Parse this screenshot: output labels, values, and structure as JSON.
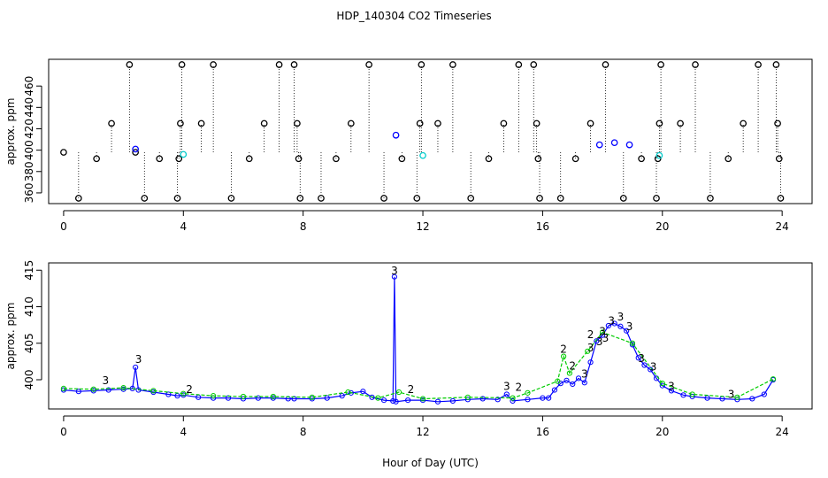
{
  "title": "HDP_140304  CO2 Timeseries",
  "colors": {
    "black": "#000000",
    "blue": "#0000ff",
    "green": "#00cc00",
    "cyan": "#00cccc"
  },
  "chart_data": [
    {
      "type": "scatter",
      "xlabel": "",
      "ylabel": "approx. ppm",
      "xlim": [
        -0.5,
        25
      ],
      "ylim": [
        350,
        485
      ],
      "x_ticks": [
        0,
        4,
        8,
        12,
        16,
        20,
        24
      ],
      "x_tick_labels": [
        "0",
        "4",
        "8",
        "12",
        "16",
        "20",
        "24"
      ],
      "y_ticks": [
        360,
        380,
        400,
        420,
        440,
        460
      ],
      "y_tick_labels": [
        "360",
        "380",
        "400",
        "420",
        "440",
        "460"
      ],
      "grid": false,
      "series": [
        {
          "color": "#000000",
          "marker": "circle",
          "points": [
            [
              0.0,
              398
            ],
            [
              0.5,
              355
            ],
            [
              1.1,
              392
            ],
            [
              1.6,
              425
            ],
            [
              2.2,
              480
            ],
            [
              2.4,
              398
            ],
            [
              2.7,
              355
            ],
            [
              3.2,
              392
            ],
            [
              3.8,
              355
            ],
            [
              3.85,
              392
            ],
            [
              3.9,
              425
            ],
            [
              3.95,
              480
            ],
            [
              4.6,
              425
            ],
            [
              5.0,
              480
            ],
            [
              5.6,
              355
            ],
            [
              6.2,
              392
            ],
            [
              6.7,
              425
            ],
            [
              7.2,
              480
            ],
            [
              7.7,
              480
            ],
            [
              7.8,
              425
            ],
            [
              7.85,
              392
            ],
            [
              7.9,
              355
            ],
            [
              8.6,
              355
            ],
            [
              9.1,
              392
            ],
            [
              9.6,
              425
            ],
            [
              10.2,
              480
            ],
            [
              10.7,
              355
            ],
            [
              11.3,
              392
            ],
            [
              11.8,
              355
            ],
            [
              11.9,
              425
            ],
            [
              11.95,
              480
            ],
            [
              12.5,
              425
            ],
            [
              13.0,
              480
            ],
            [
              13.6,
              355
            ],
            [
              14.2,
              392
            ],
            [
              14.7,
              425
            ],
            [
              15.2,
              480
            ],
            [
              15.7,
              480
            ],
            [
              15.8,
              425
            ],
            [
              15.85,
              392
            ],
            [
              15.9,
              355
            ],
            [
              16.6,
              355
            ],
            [
              17.1,
              392
            ],
            [
              17.6,
              425
            ],
            [
              18.1,
              480
            ],
            [
              18.7,
              355
            ],
            [
              19.3,
              392
            ],
            [
              19.8,
              355
            ],
            [
              19.85,
              392
            ],
            [
              19.9,
              425
            ],
            [
              19.95,
              480
            ],
            [
              20.6,
              425
            ],
            [
              21.1,
              480
            ],
            [
              21.6,
              355
            ],
            [
              22.2,
              392
            ],
            [
              22.7,
              425
            ],
            [
              23.2,
              480
            ],
            [
              23.8,
              480
            ],
            [
              23.85,
              425
            ],
            [
              23.9,
              392
            ],
            [
              23.95,
              355
            ]
          ]
        },
        {
          "color": "#0000ff",
          "marker": "circle",
          "points": [
            [
              2.4,
              401
            ],
            [
              11.1,
              414
            ],
            [
              17.9,
              405
            ],
            [
              18.4,
              407
            ],
            [
              18.9,
              405
            ]
          ]
        },
        {
          "color": "#00cccc",
          "marker": "circle",
          "points": [
            [
              4.0,
              396
            ],
            [
              12.0,
              395
            ],
            [
              19.9,
              395
            ]
          ]
        }
      ]
    },
    {
      "type": "line",
      "xlabel": "Hour of Day (UTC)",
      "ylabel": "approx. ppm",
      "xlim": [
        -0.5,
        25
      ],
      "ylim": [
        396,
        416
      ],
      "x_ticks": [
        0,
        4,
        8,
        12,
        16,
        20,
        24
      ],
      "x_tick_labels": [
        "0",
        "4",
        "8",
        "12",
        "16",
        "20",
        "24"
      ],
      "y_ticks": [
        400,
        405,
        410,
        415
      ],
      "y_tick_labels": [
        "400",
        "405",
        "410",
        "415"
      ],
      "grid": false,
      "series": [
        {
          "color": "#0000ff",
          "points": [
            [
              0.0,
              398.6
            ],
            [
              0.5,
              398.4
            ],
            [
              1.0,
              398.5
            ],
            [
              1.5,
              398.6
            ],
            [
              2.0,
              398.7
            ],
            [
              2.3,
              398.8
            ],
            [
              2.4,
              401.7
            ],
            [
              2.5,
              398.6
            ],
            [
              3.0,
              398.3
            ],
            [
              3.5,
              398.0
            ],
            [
              3.8,
              397.8
            ],
            [
              4.0,
              397.9
            ],
            [
              4.5,
              397.6
            ],
            [
              5.0,
              397.5
            ],
            [
              5.5,
              397.5
            ],
            [
              6.0,
              397.4
            ],
            [
              6.5,
              397.5
            ],
            [
              7.0,
              397.5
            ],
            [
              7.5,
              397.4
            ],
            [
              7.7,
              397.4
            ],
            [
              8.3,
              397.4
            ],
            [
              8.8,
              397.5
            ],
            [
              9.3,
              397.8
            ],
            [
              9.6,
              398.2
            ],
            [
              10.0,
              398.4
            ],
            [
              10.3,
              397.6
            ],
            [
              10.7,
              397.2
            ],
            [
              11.0,
              397.1
            ],
            [
              11.05,
              414.1
            ],
            [
              11.1,
              397.0
            ],
            [
              11.5,
              397.2
            ],
            [
              12.0,
              397.2
            ],
            [
              12.5,
              397.0
            ],
            [
              13.0,
              397.1
            ],
            [
              13.5,
              397.3
            ],
            [
              14.0,
              397.4
            ],
            [
              14.5,
              397.3
            ],
            [
              14.8,
              398.0
            ],
            [
              15.0,
              397.1
            ],
            [
              15.5,
              397.3
            ],
            [
              16.0,
              397.5
            ],
            [
              16.2,
              397.5
            ],
            [
              16.4,
              398.6
            ],
            [
              16.6,
              399.5
            ],
            [
              16.8,
              399.9
            ],
            [
              17.0,
              399.4
            ],
            [
              17.2,
              400.2
            ],
            [
              17.4,
              399.6
            ],
            [
              17.6,
              402.4
            ],
            [
              17.8,
              405.3
            ],
            [
              18.0,
              406.1
            ],
            [
              18.2,
              407.4
            ],
            [
              18.4,
              407.7
            ],
            [
              18.6,
              407.3
            ],
            [
              18.8,
              406.7
            ],
            [
              19.0,
              404.8
            ],
            [
              19.2,
              403.0
            ],
            [
              19.4,
              402.0
            ],
            [
              19.6,
              401.4
            ],
            [
              19.8,
              400.2
            ],
            [
              20.0,
              399.2
            ],
            [
              20.3,
              398.5
            ],
            [
              20.7,
              397.9
            ],
            [
              21.0,
              397.7
            ],
            [
              21.5,
              397.5
            ],
            [
              22.0,
              397.4
            ],
            [
              22.5,
              397.3
            ],
            [
              23.0,
              397.4
            ],
            [
              23.4,
              398.0
            ],
            [
              23.7,
              400.0
            ]
          ]
        },
        {
          "color": "#00cc00",
          "points": [
            [
              0.0,
              398.8
            ],
            [
              1.0,
              398.7
            ],
            [
              2.0,
              398.9
            ],
            [
              3.0,
              398.5
            ],
            [
              4.0,
              398.1
            ],
            [
              5.0,
              397.8
            ],
            [
              6.0,
              397.7
            ],
            [
              7.0,
              397.7
            ],
            [
              8.3,
              397.6
            ],
            [
              9.5,
              398.3
            ],
            [
              10.5,
              397.5
            ],
            [
              11.2,
              398.3
            ],
            [
              12.0,
              397.4
            ],
            [
              13.5,
              397.6
            ],
            [
              15.0,
              397.5
            ],
            [
              15.5,
              398.2
            ],
            [
              16.5,
              399.8
            ],
            [
              16.7,
              403.2
            ],
            [
              16.9,
              400.9
            ],
            [
              17.5,
              403.9
            ],
            [
              18.0,
              406.5
            ],
            [
              19.0,
              405.0
            ],
            [
              20.0,
              399.5
            ],
            [
              21.0,
              398.0
            ],
            [
              22.5,
              397.6
            ],
            [
              23.7,
              400.1
            ]
          ]
        }
      ],
      "annotations": [
        {
          "text": "3",
          "x": 1.4,
          "y": 399.4,
          "color": "#0000ff"
        },
        {
          "text": "3",
          "x": 2.5,
          "y": 402.3,
          "color": "#0000ff"
        },
        {
          "text": "2",
          "x": 4.2,
          "y": 398.2,
          "color": "#00cc00"
        },
        {
          "text": "3",
          "x": 11.05,
          "y": 414.4,
          "color": "#0000ff"
        },
        {
          "text": "2",
          "x": 11.6,
          "y": 398.2,
          "color": "#00cc00"
        },
        {
          "text": "3",
          "x": 14.8,
          "y": 398.6,
          "color": "#0000ff"
        },
        {
          "text": "2",
          "x": 15.2,
          "y": 398.5,
          "color": "#00cc00"
        },
        {
          "text": "2",
          "x": 16.7,
          "y": 403.7,
          "color": "#00cc00"
        },
        {
          "text": "2",
          "x": 17.0,
          "y": 401.4,
          "color": "#00cc00"
        },
        {
          "text": "3",
          "x": 17.4,
          "y": 400.3,
          "color": "#0000ff"
        },
        {
          "text": "2",
          "x": 17.6,
          "y": 405.7,
          "color": "#00cc00"
        },
        {
          "text": "3",
          "x": 17.6,
          "y": 403.9,
          "color": "#0000ff"
        },
        {
          "text": "3",
          "x": 17.9,
          "y": 404.7,
          "color": "#0000ff"
        },
        {
          "text": "3",
          "x": 18.0,
          "y": 406.1,
          "color": "#0000ff"
        },
        {
          "text": "3",
          "x": 18.1,
          "y": 405.2,
          "color": "#0000ff"
        },
        {
          "text": "3",
          "x": 18.3,
          "y": 407.6,
          "color": "#0000ff"
        },
        {
          "text": "3",
          "x": 18.6,
          "y": 408.1,
          "color": "#0000ff"
        },
        {
          "text": "3",
          "x": 18.9,
          "y": 406.8,
          "color": "#0000ff"
        },
        {
          "text": "3",
          "x": 19.3,
          "y": 402.4,
          "color": "#0000ff"
        },
        {
          "text": "3",
          "x": 19.7,
          "y": 401.3,
          "color": "#0000ff"
        },
        {
          "text": "3",
          "x": 20.3,
          "y": 398.6,
          "color": "#0000ff"
        },
        {
          "text": "3",
          "x": 22.3,
          "y": 397.5,
          "color": "#0000ff"
        }
      ]
    }
  ]
}
